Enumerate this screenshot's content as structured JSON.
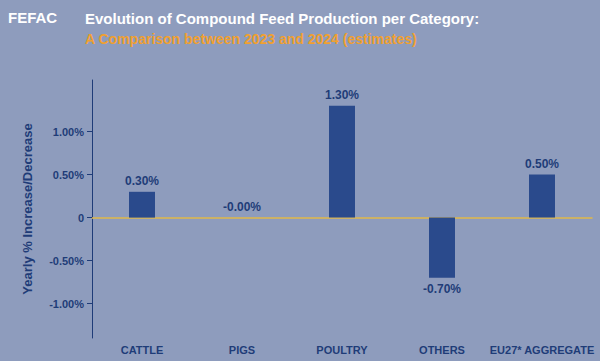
{
  "chart_data": {
    "type": "bar",
    "title": "Evolution of Compound Feed Production per Category:",
    "subtitle": "A Comparison between 2023 and 2024 (estimates)",
    "logo": "FEFAC",
    "y_label": "Yearly % Increase/Decrease",
    "categories": [
      "CATTLE",
      "PIGS",
      "POULTRY",
      "OTHERS",
      "EU27* AGGREGATE"
    ],
    "values": [
      0.3,
      0,
      1.3,
      -0.7,
      0.5
    ],
    "value_labels": [
      "0.30%",
      "-0.00%",
      "1.30%",
      "-0.70%",
      "0.50%"
    ],
    "color": "#2a4a8c",
    "ylim": [
      -1.4,
      1.6
    ],
    "yticks": [
      {
        "value": -1,
        "label": "-1.00%"
      },
      {
        "value": -0.5,
        "label": "-0.50%"
      },
      0,
      {
        "value": 0.5,
        "label": "0.50%"
      },
      {
        "value": 1,
        "label": "1.00%"
      }
    ],
    "grid": false,
    "data_labels": true
  }
}
